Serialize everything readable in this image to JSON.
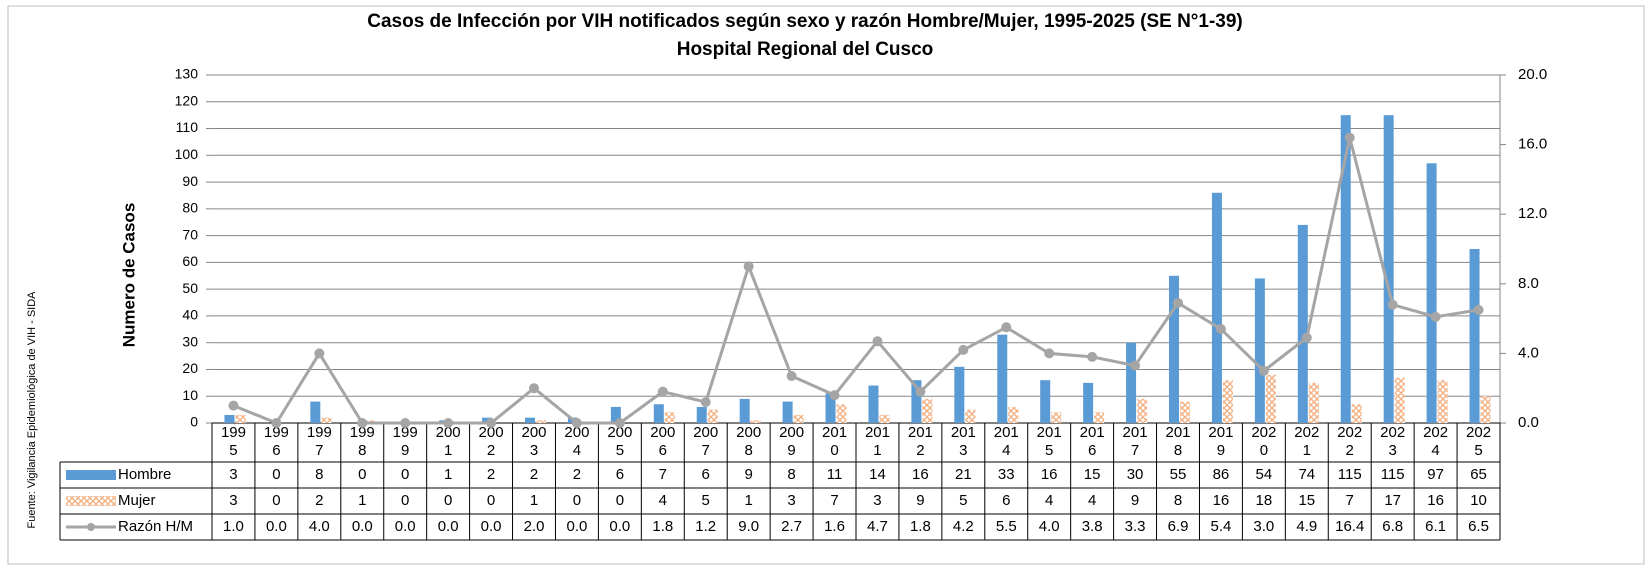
{
  "chart_data": {
    "type": "bar-line-table",
    "title": [
      "Casos de Infección por VIH notificados según sexo y razón Hombre/Mujer, 1995-2025 (SE N°1-39)",
      "Hospital Regional del Cusco"
    ],
    "ylabel": "Numero de Casos",
    "source": "Fuente: Vigilancia Epidemiológica de VIH - SIDA",
    "categories": [
      "1995",
      "1996",
      "1997",
      "1998",
      "1999",
      "2001",
      "2002",
      "2003",
      "2004",
      "2005",
      "2006",
      "2007",
      "2008",
      "2009",
      "2010",
      "2011",
      "2012",
      "2013",
      "2014",
      "2015",
      "2016",
      "2017",
      "2018",
      "2019",
      "2020",
      "2021",
      "2022",
      "2023",
      "2024",
      "2025"
    ],
    "series": [
      {
        "name": "Hombre",
        "color": "#5b9bd5",
        "kind": "bar",
        "values": [
          3,
          0,
          8,
          0,
          0,
          1,
          2,
          2,
          2,
          6,
          7,
          6,
          9,
          8,
          11,
          14,
          16,
          21,
          33,
          16,
          15,
          30,
          55,
          86,
          54,
          74,
          115,
          115,
          97,
          65
        ]
      },
      {
        "name": "Mujer",
        "color": "#f4b183",
        "kind": "bar",
        "values": [
          3,
          0,
          2,
          1,
          0,
          0,
          0,
          1,
          0,
          0,
          4,
          5,
          1,
          3,
          7,
          3,
          9,
          5,
          6,
          4,
          4,
          9,
          8,
          16,
          18,
          15,
          7,
          17,
          16,
          10
        ]
      },
      {
        "name": "Razón H/M",
        "color": "#a5a5a5",
        "kind": "line",
        "axis": "y2",
        "values": [
          1,
          0,
          4,
          0,
          0,
          0,
          0,
          2,
          0,
          0,
          1.8,
          1.2,
          9,
          2.7,
          1.6,
          4.7,
          1.8,
          4.2,
          5.5,
          4,
          3.8,
          3.3,
          6.9,
          5.4,
          3,
          4.9,
          16.4,
          6.8,
          6.1,
          6.5
        ],
        "value_labels": [
          "1.0",
          "0.0",
          "4.0",
          "0.0",
          "0.0",
          "0.0",
          "0.0",
          "2.0",
          "0.0",
          "0.0",
          "1.8",
          "1.2",
          "9.0",
          "2.7",
          "1.6",
          "4.7",
          "1.8",
          "4.2",
          "5.5",
          "4.0",
          "3.8",
          "3.3",
          "6.9",
          "5.4",
          "3.0",
          "4.9",
          "16.4",
          "6.8",
          "6.1",
          "6.5"
        ]
      }
    ],
    "ylim": [
      0,
      130
    ],
    "yticks": [
      0,
      10,
      20,
      30,
      40,
      50,
      60,
      70,
      80,
      90,
      100,
      110,
      120,
      130
    ],
    "y2lim": [
      0,
      20
    ],
    "y2ticks": [
      {
        "value": 0,
        "label": "0.0"
      },
      {
        "value": 4,
        "label": "4.0"
      },
      {
        "value": 8,
        "label": "8.0"
      },
      {
        "value": 12,
        "label": "12.0"
      },
      {
        "value": 16,
        "label": "16.0"
      },
      {
        "value": 20,
        "label": "20.0"
      }
    ],
    "grid": true
  }
}
